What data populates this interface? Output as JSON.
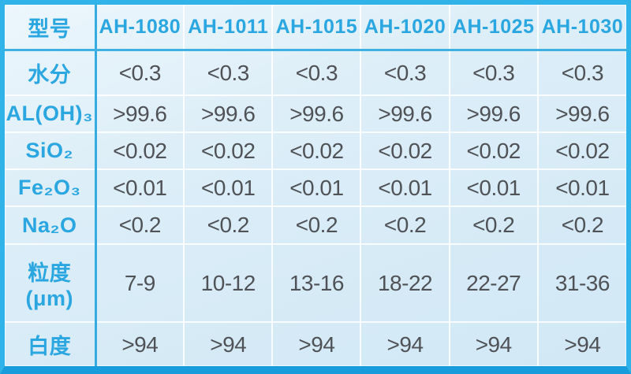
{
  "table": {
    "title_cell": "型号",
    "models": [
      "AH-1080",
      "AH-1011",
      "AH-1015",
      "AH-1020",
      "AH-1025",
      "AH-1030"
    ],
    "rows": [
      {
        "label": "水分",
        "values": [
          "<0.3",
          "<0.3",
          "<0.3",
          "<0.3",
          "<0.3",
          "<0.3"
        ]
      },
      {
        "label": "AL(OH)₃",
        "values": [
          ">99.6",
          ">99.6",
          ">99.6",
          ">99.6",
          ">99.6",
          ">99.6"
        ]
      },
      {
        "label": "SiO₂",
        "values": [
          "<0.02",
          "<0.02",
          "<0.02",
          "<0.02",
          "<0.02",
          "<0.02"
        ]
      },
      {
        "label": "Fe₂O₃",
        "values": [
          "<0.01",
          "<0.01",
          "<0.01",
          "<0.01",
          "<0.01",
          "<0.01"
        ]
      },
      {
        "label": "Na₂O",
        "values": [
          "<0.2",
          "<0.2",
          "<0.2",
          "<0.2",
          "<0.2",
          "<0.2"
        ]
      },
      {
        "label": "粒度(μm)",
        "values": [
          "7-9",
          "10-12",
          "13-16",
          "18-22",
          "22-27",
          "31-36"
        ]
      },
      {
        "label": "白度",
        "values": [
          ">94",
          ">94",
          ">94",
          ">94",
          ">94",
          ">94"
        ]
      }
    ],
    "colors": {
      "accent_text": "#2aa6e0",
      "frame_border": "#2fb3e8",
      "frame_border_bottom": "#189cdb",
      "cell_background": "#ddeef8",
      "value_text": "#4f5257",
      "grid_line": "#ffffff"
    }
  }
}
